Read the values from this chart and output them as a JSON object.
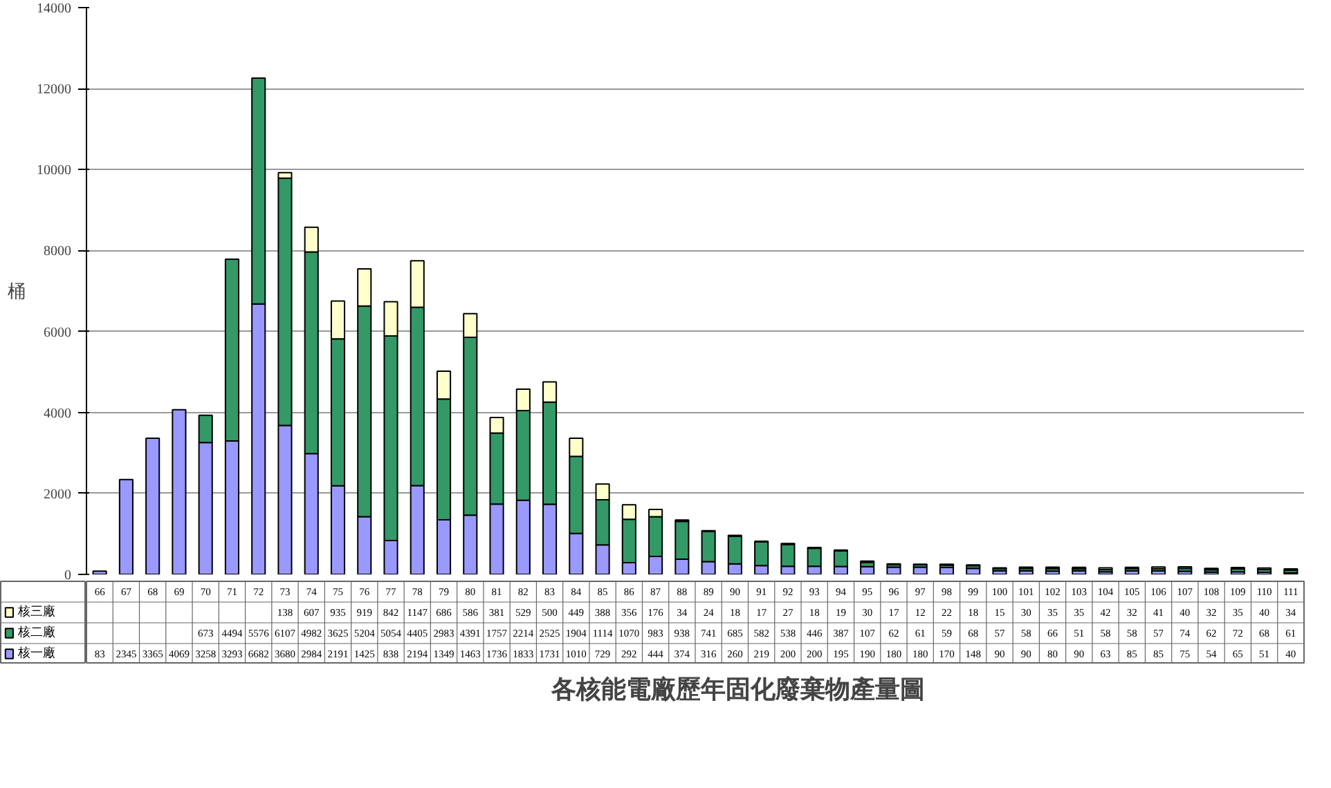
{
  "chart_data": {
    "type": "bar",
    "stacked": true,
    "title": "各核能電廠歷年固化廢棄物產量圖",
    "ylabel": "桶",
    "categories": [
      "66",
      "67",
      "68",
      "69",
      "70",
      "71",
      "72",
      "73",
      "74",
      "75",
      "76",
      "77",
      "78",
      "79",
      "80",
      "81",
      "82",
      "83",
      "84",
      "85",
      "86",
      "87",
      "88",
      "89",
      "90",
      "91",
      "92",
      "93",
      "94",
      "95",
      "96",
      "97",
      "98",
      "99",
      "100",
      "101",
      "102",
      "103",
      "104",
      "105",
      "106",
      "107",
      "108",
      "109",
      "110",
      "111"
    ],
    "series": [
      {
        "name": "核一廠",
        "color": "#9999ff",
        "values": [
          83,
          2345,
          3365,
          4069,
          3258,
          3293,
          6682,
          3680,
          2984,
          2191,
          1425,
          838,
          2194,
          1349,
          1463,
          1736,
          1833,
          1731,
          1010,
          729,
          292,
          444,
          374,
          316,
          260,
          219,
          200,
          200,
          195,
          190,
          180,
          180,
          170,
          148,
          90,
          90,
          80,
          90,
          63,
          85,
          85,
          75,
          54,
          65,
          51,
          40
        ]
      },
      {
        "name": "核二廠",
        "color": "#339966",
        "values": [
          null,
          null,
          null,
          null,
          673,
          4494,
          5576,
          6107,
          4982,
          3625,
          5204,
          5054,
          4405,
          2983,
          4391,
          1757,
          2214,
          2525,
          1904,
          1114,
          1070,
          983,
          938,
          741,
          685,
          582,
          538,
          446,
          387,
          107,
          62,
          61,
          59,
          68,
          57,
          58,
          66,
          51,
          58,
          58,
          57,
          74,
          62,
          72,
          68,
          61
        ]
      },
      {
        "name": "核三廠",
        "color": "#ffffcc",
        "values": [
          null,
          null,
          null,
          null,
          null,
          null,
          null,
          138,
          607,
          935,
          919,
          842,
          1147,
          686,
          586,
          381,
          529,
          500,
          449,
          388,
          356,
          176,
          34,
          24,
          18,
          17,
          27,
          18,
          19,
          30,
          17,
          12,
          22,
          18,
          15,
          30,
          35,
          35,
          42,
          32,
          41,
          40,
          32,
          35,
          40,
          34
        ]
      }
    ],
    "ylim": [
      0,
      14000
    ],
    "yticks": [
      0,
      2000,
      4000,
      6000,
      8000,
      10000,
      12000,
      14000
    ],
    "grid": "y",
    "data_labels": true,
    "legend": "bottom left"
  }
}
